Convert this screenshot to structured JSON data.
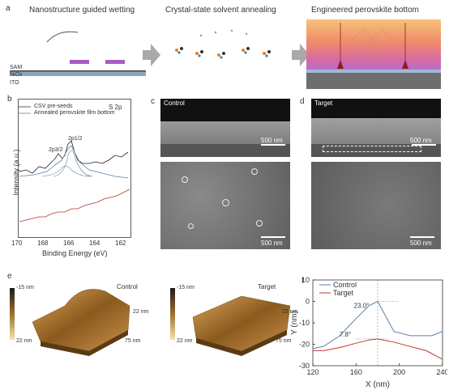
{
  "panel_a": {
    "letter": "a",
    "step1_title": "Nanostructure guided wetting",
    "step2_title": "Crystal-state solvent annealing",
    "step3_title": "Engineered perovskite bottom",
    "layers": [
      "SAM",
      "NiOx",
      "ITO"
    ]
  },
  "panel_b": {
    "letter": "b",
    "tag": "S 2p",
    "legend": [
      "CSV pre-seeds",
      "Annealed perovskite film bottom"
    ],
    "peak1": "2p3/2",
    "peak2": "2p1/2",
    "ylabel": "Intensity (a.u.)",
    "xlabel": "Binding Energy (eV)",
    "xticks": [
      "170",
      "168",
      "166",
      "164",
      "162"
    ]
  },
  "panel_c": {
    "letter": "c",
    "tag": "Control",
    "scale_top": "500 nm",
    "scale_bottom": "500 nm"
  },
  "panel_d": {
    "letter": "d",
    "tag": "Target",
    "scale_top": "500 nm",
    "scale_bottom": "500 nm"
  },
  "panel_e": {
    "letter": "e",
    "control": {
      "label": "Control",
      "top": "-15 nm",
      "bottom": "22 nm",
      "ax1": "22 nm",
      "ax2": "75 nm"
    },
    "target": {
      "label": "Target",
      "top": "-15 nm",
      "bottom": "22 nm",
      "ax1": "22 nm",
      "ax2": "75 nm"
    }
  },
  "panel_f": {
    "letter": "f",
    "chart_data": {
      "type": "line",
      "xlabel": "X (nm)",
      "ylabel": "Y (nm)",
      "xlim": [
        120,
        240
      ],
      "ylim": [
        -30,
        10
      ],
      "xticks": [
        120,
        160,
        200,
        240
      ],
      "yticks": [
        10,
        0,
        -10,
        -20,
        -30
      ],
      "series": [
        {
          "name": "Control",
          "color": "#5b7fa8",
          "x": [
            120,
            130,
            145,
            160,
            172,
            180,
            195,
            210,
            230,
            240
          ],
          "y": [
            -22,
            -21,
            -16,
            -8,
            -2,
            0,
            -14,
            -16,
            -16,
            -14
          ]
        },
        {
          "name": "Target",
          "color": "#c0392b",
          "x": [
            120,
            130,
            145,
            160,
            172,
            180,
            195,
            210,
            225,
            240
          ],
          "y": [
            -23,
            -23,
            -21.5,
            -19.5,
            -18,
            -17.5,
            -19,
            -21,
            -23,
            -27
          ]
        }
      ],
      "annotations": [
        "23.0°",
        "7.8°"
      ]
    }
  }
}
